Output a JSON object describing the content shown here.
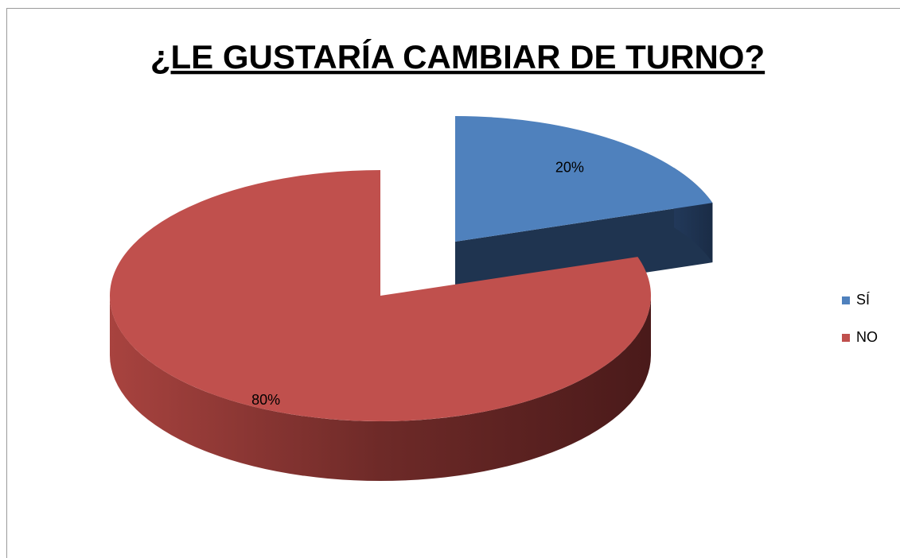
{
  "chart_data": {
    "type": "pie",
    "title": "¿LE GUSTARÍA CAMBIAR DE TURNO?",
    "categories": [
      "SÍ",
      "NO"
    ],
    "values": [
      20,
      80
    ],
    "value_labels": [
      "20%",
      "80%"
    ],
    "colors": [
      "#4f81bd",
      "#c0504d"
    ],
    "legend": "right"
  }
}
